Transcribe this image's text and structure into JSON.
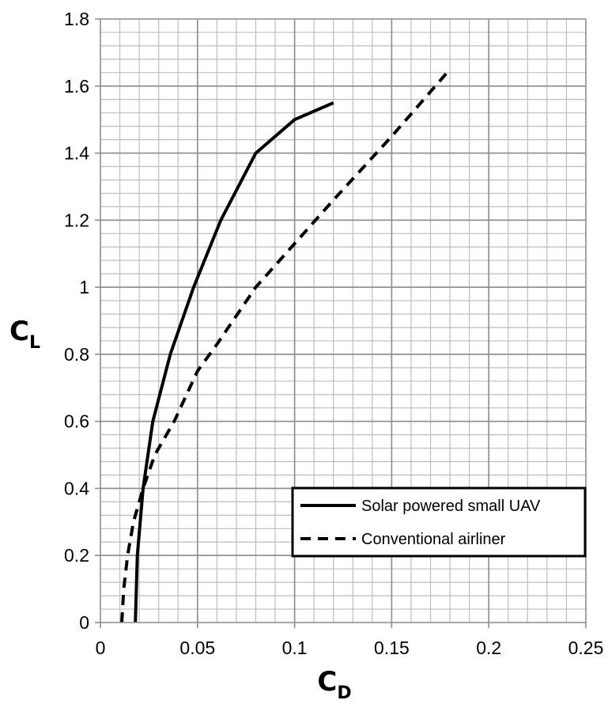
{
  "chart_data": {
    "type": "line",
    "xlabel": {
      "main": "C",
      "sub": "D"
    },
    "ylabel": {
      "main": "C",
      "sub": "L"
    },
    "xlim": [
      0,
      0.25
    ],
    "ylim": [
      0,
      1.8
    ],
    "x_ticks": [
      "0",
      "0.05",
      "0.1",
      "0.15",
      "0.2",
      "0.25"
    ],
    "y_ticks": [
      "0",
      "0.2",
      "0.4",
      "0.6",
      "0.8",
      "1",
      "1.2",
      "1.4",
      "1.6",
      "1.8"
    ],
    "grid": true,
    "legend_position": "bottom-right",
    "series": [
      {
        "name": "Solar powered small UAV",
        "style": "solid",
        "color": "#000000",
        "points": [
          [
            0.018,
            0.0
          ],
          [
            0.019,
            0.2
          ],
          [
            0.022,
            0.4
          ],
          [
            0.027,
            0.6
          ],
          [
            0.036,
            0.8
          ],
          [
            0.048,
            1.0
          ],
          [
            0.062,
            1.2
          ],
          [
            0.08,
            1.4
          ],
          [
            0.1,
            1.5
          ],
          [
            0.12,
            1.55
          ]
        ]
      },
      {
        "name": "Conventional airliner",
        "style": "dashed",
        "color": "#000000",
        "points": [
          [
            0.011,
            0.0
          ],
          [
            0.012,
            0.1
          ],
          [
            0.014,
            0.2
          ],
          [
            0.017,
            0.3
          ],
          [
            0.022,
            0.4
          ],
          [
            0.028,
            0.5
          ],
          [
            0.038,
            0.6
          ],
          [
            0.05,
            0.75
          ],
          [
            0.06,
            0.83
          ],
          [
            0.08,
            1.0
          ],
          [
            0.1,
            1.13
          ],
          [
            0.12,
            1.26
          ],
          [
            0.15,
            1.45
          ],
          [
            0.18,
            1.65
          ]
        ]
      }
    ]
  }
}
